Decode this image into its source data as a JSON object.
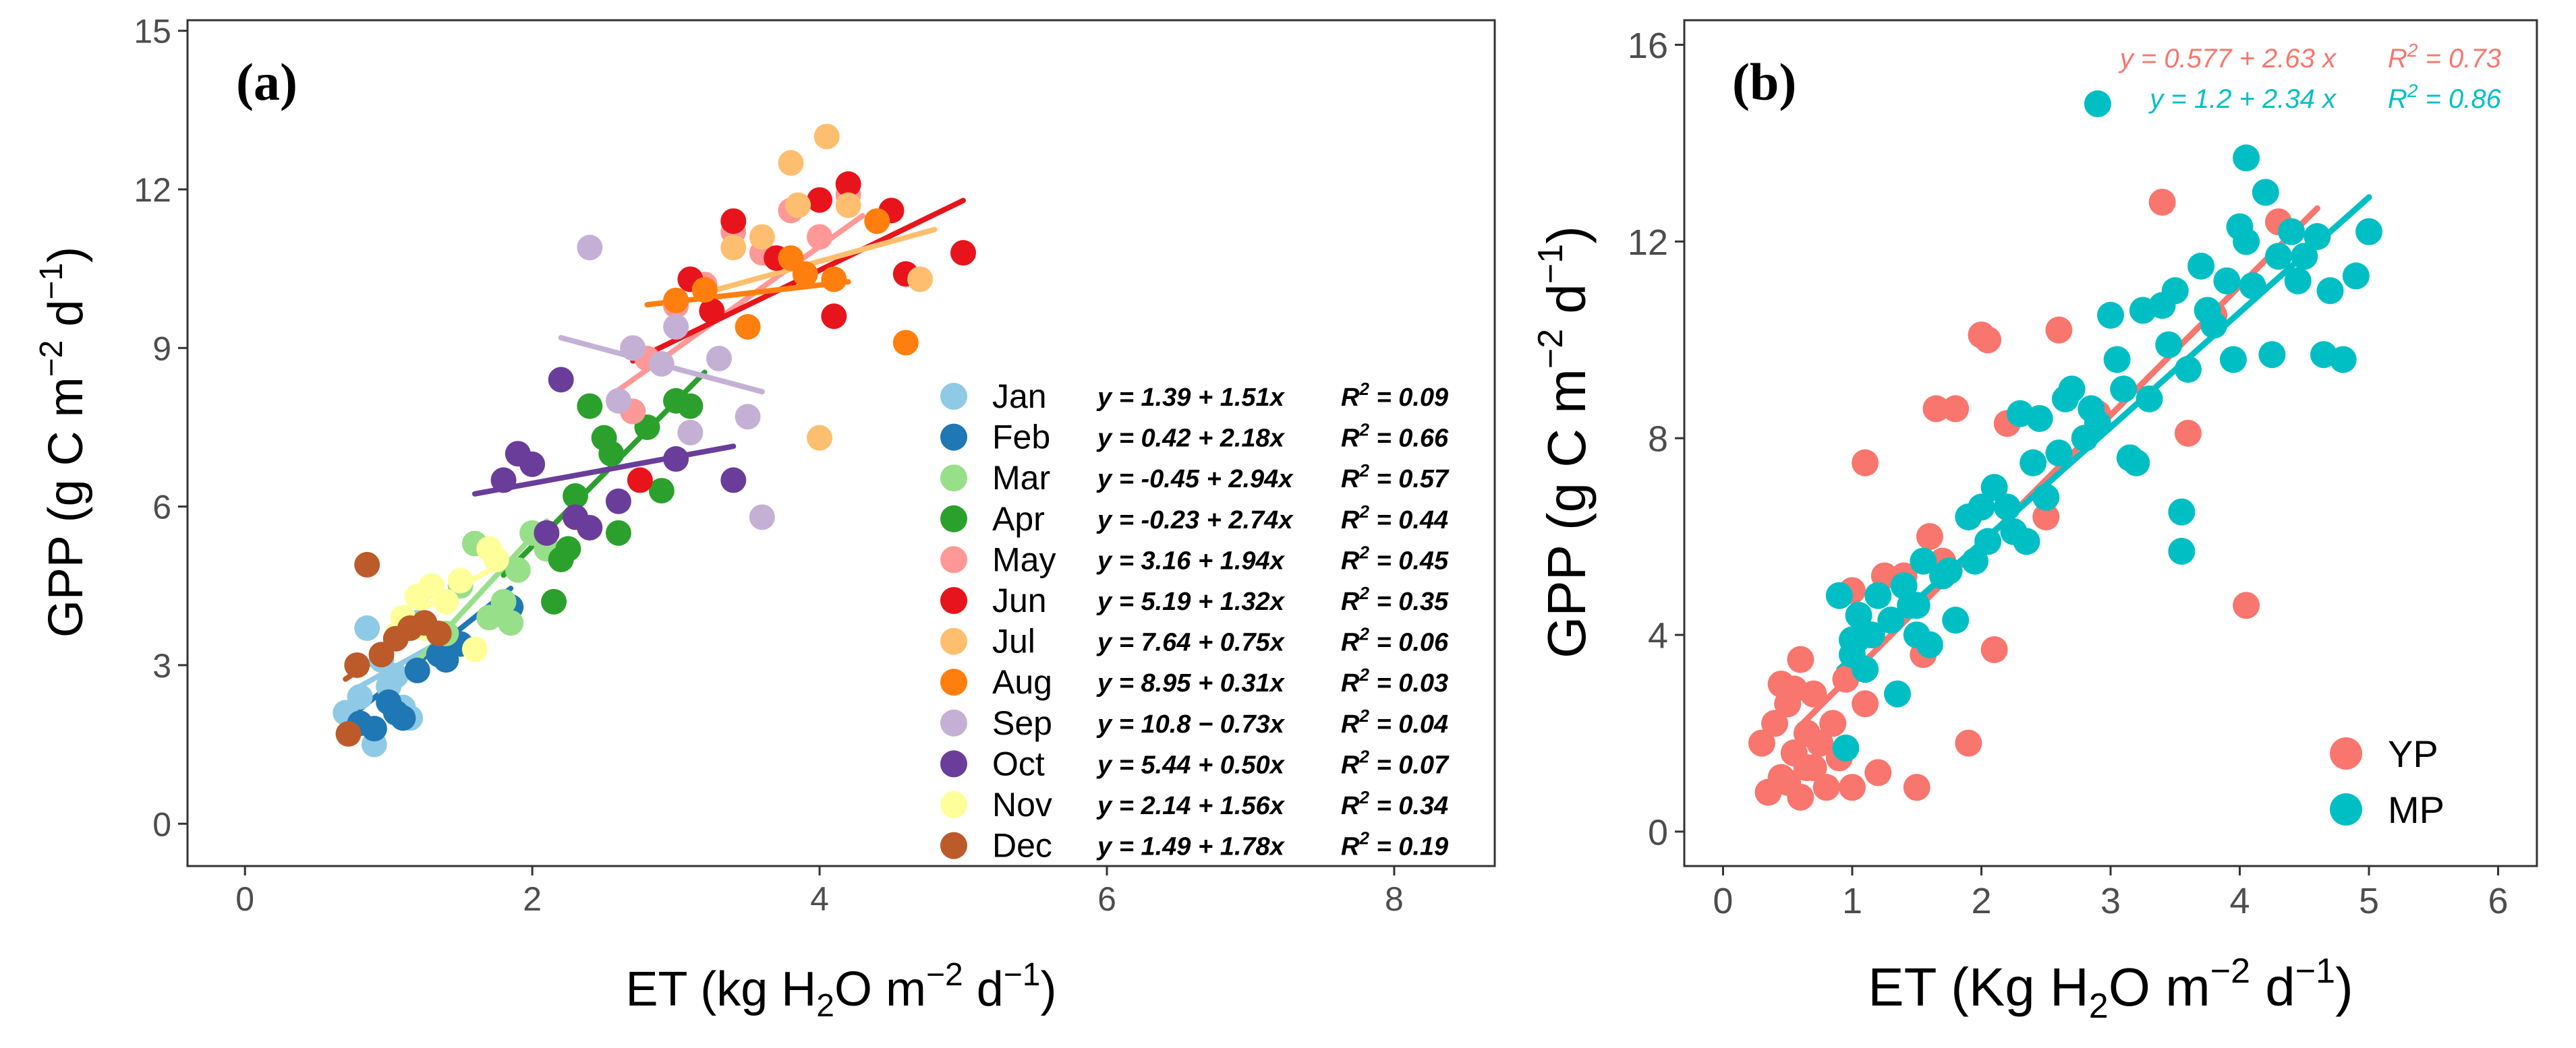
{
  "chart_data": [
    {
      "type": "scatter",
      "panel_label": "(a)",
      "xlim": [
        -0.4,
        8.7
      ],
      "ylim": [
        -0.8,
        15.2
      ],
      "xticks": [
        0,
        2,
        4,
        6,
        8
      ],
      "yticks": [
        0,
        3,
        6,
        9,
        12,
        15
      ],
      "xlabel": {
        "pre": "ET (kg H",
        "sub": "2",
        "mid": "O m",
        "sup1": "−2",
        "mid2": " d",
        "sup2": "−1",
        "post": ")"
      },
      "ylabel": {
        "pre": "GPP (g C m",
        "sup1": "−2",
        "mid": " d",
        "sup2": "−1",
        "post": ")"
      },
      "grid": false,
      "legend_position": "bottom-right",
      "series": [
        {
          "name": "Jan",
          "color": "#8ecae6",
          "equation": "y = 1.39 + 1.51x",
          "r2": "0.09",
          "intercept": 1.39,
          "slope": 1.51,
          "fit_x": [
            0.75,
            1.35
          ],
          "x": [
            0.7,
            0.9,
            1.0,
            1.1,
            1.2,
            0.8,
            0.95,
            1.05,
            1.15,
            0.85
          ],
          "y": [
            2.1,
            1.5,
            2.6,
            2.2,
            3.8,
            2.4,
            3.1,
            2.8,
            2.0,
            3.7
          ]
        },
        {
          "name": "Feb",
          "color": "#1f77b4",
          "equation": "y = 0.42 + 2.18x",
          "r2": "0.66",
          "intercept": 0.42,
          "slope": 2.18,
          "fit_x": [
            0.8,
            1.85
          ],
          "x": [
            0.9,
            1.0,
            1.05,
            1.1,
            1.2,
            1.35,
            1.5,
            1.85,
            0.8,
            1.4
          ],
          "y": [
            1.8,
            2.3,
            2.1,
            2.0,
            2.9,
            3.2,
            3.4,
            4.1,
            1.9,
            3.1
          ]
        },
        {
          "name": "Mar",
          "color": "#98df8a",
          "equation": "y = -0.45 + 2.94x",
          "r2": "0.57",
          "intercept": -0.45,
          "slope": 2.94,
          "fit_x": [
            1.2,
            2.1
          ],
          "x": [
            1.4,
            1.5,
            1.6,
            1.7,
            1.8,
            1.9,
            2.0,
            2.1,
            1.85
          ],
          "y": [
            3.6,
            4.5,
            5.3,
            3.9,
            4.2,
            4.8,
            5.5,
            5.2,
            3.8
          ]
        },
        {
          "name": "Apr",
          "color": "#2ca02c",
          "equation": "y = -0.23 + 2.74x",
          "r2": "0.44",
          "intercept": -0.23,
          "slope": 2.74,
          "fit_x": [
            1.8,
            3.2
          ],
          "x": [
            2.2,
            2.3,
            2.4,
            2.5,
            2.6,
            2.7,
            2.8,
            2.9,
            3.0,
            3.1,
            2.15,
            2.55,
            2.25
          ],
          "y": [
            5.0,
            6.2,
            7.9,
            7.3,
            5.5,
            7.8,
            7.5,
            6.3,
            8.0,
            7.9,
            4.2,
            7.0,
            5.2
          ]
        },
        {
          "name": "May",
          "color": "#ff9896",
          "equation": "y = 3.16 + 1.94x",
          "r2": "0.45",
          "intercept": 3.16,
          "slope": 1.94,
          "fit_x": [
            2.6,
            4.3
          ],
          "x": [
            2.8,
            3.0,
            3.2,
            3.4,
            3.6,
            3.8,
            4.0,
            4.2,
            2.7
          ],
          "y": [
            8.8,
            9.8,
            10.2,
            11.2,
            10.8,
            11.6,
            11.1,
            11.9,
            7.8
          ]
        },
        {
          "name": "Jun",
          "color": "#e8141c",
          "equation": "y = 5.19 + 1.32x",
          "r2": "0.35",
          "intercept": 5.19,
          "slope": 1.32,
          "fit_x": [
            2.7,
            5.0
          ],
          "x": [
            3.1,
            3.4,
            3.7,
            4.0,
            4.1,
            4.2,
            4.5,
            4.6,
            5.0,
            2.75,
            3.25
          ],
          "y": [
            10.3,
            11.4,
            10.7,
            11.8,
            9.6,
            12.1,
            11.6,
            10.4,
            10.8,
            6.5,
            9.7
          ]
        },
        {
          "name": "Jul",
          "color": "#fdbf6f",
          "equation": "y = 7.64 + 0.75x",
          "r2": "0.06",
          "intercept": 7.64,
          "slope": 0.75,
          "fit_x": [
            3.2,
            4.8
          ],
          "x": [
            3.4,
            3.6,
            3.8,
            4.05,
            4.2,
            4.4,
            4.7,
            4.0,
            3.85
          ],
          "y": [
            10.9,
            11.1,
            12.5,
            13.0,
            11.7,
            11.4,
            10.3,
            7.3,
            11.7
          ]
        },
        {
          "name": "Aug",
          "color": "#ff7f0e",
          "equation": "y = 8.95 + 0.31x",
          "r2": "0.03",
          "intercept": 8.95,
          "slope": 0.31,
          "fit_x": [
            2.8,
            4.2
          ],
          "x": [
            3.2,
            3.5,
            3.8,
            4.1,
            4.4,
            4.6,
            3.9,
            3.0
          ],
          "y": [
            10.1,
            9.4,
            10.7,
            10.3,
            11.4,
            9.1,
            10.4,
            9.9
          ]
        },
        {
          "name": "Sep",
          "color": "#c5b0d5",
          "equation": "y = 10.8 − 0.73x",
          "r2": "0.04",
          "intercept": 10.8,
          "slope": -0.73,
          "fit_x": [
            2.2,
            3.6
          ],
          "x": [
            2.4,
            2.7,
            2.9,
            3.1,
            3.3,
            3.5,
            3.6,
            3.0,
            2.6
          ],
          "y": [
            10.9,
            9.0,
            8.7,
            7.4,
            8.8,
            7.7,
            5.8,
            9.4,
            8.0
          ]
        },
        {
          "name": "Oct",
          "color": "#6a3d9a",
          "equation": "y = 5.44 + 0.50x",
          "r2": "0.07",
          "intercept": 5.44,
          "slope": 0.5,
          "fit_x": [
            1.6,
            3.4
          ],
          "x": [
            1.8,
            2.0,
            2.1,
            2.2,
            2.4,
            2.6,
            3.0,
            3.4,
            1.9,
            2.3
          ],
          "y": [
            6.5,
            6.8,
            5.5,
            8.4,
            5.6,
            6.1,
            6.9,
            6.5,
            7.0,
            5.8
          ]
        },
        {
          "name": "Nov",
          "color": "#ffff99",
          "equation": "y = 2.14 + 1.56x",
          "r2": "0.34",
          "intercept": 2.14,
          "slope": 1.56,
          "fit_x": [
            1.0,
            1.8
          ],
          "x": [
            1.1,
            1.2,
            1.3,
            1.4,
            1.5,
            1.6,
            1.7,
            1.75,
            1.25
          ],
          "y": [
            3.9,
            4.3,
            4.5,
            4.2,
            4.6,
            3.3,
            5.2,
            5.0,
            3.7
          ]
        },
        {
          "name": "Dec",
          "color": "#bc5a2a",
          "equation": "y = 1.49 + 1.78x",
          "r2": "0.19",
          "intercept": 1.49,
          "slope": 1.78,
          "fit_x": [
            0.7,
            1.3
          ],
          "x": [
            0.72,
            0.78,
            0.85,
            0.95,
            1.05,
            1.15,
            1.25,
            1.35
          ],
          "y": [
            1.7,
            3.0,
            4.9,
            3.2,
            3.5,
            3.7,
            3.8,
            3.6
          ]
        }
      ]
    },
    {
      "type": "scatter",
      "panel_label": "(b)",
      "xlim": [
        -0.3,
        6.3
      ],
      "ylim": [
        -0.7,
        16.5
      ],
      "xticks": [
        0,
        1,
        2,
        3,
        4,
        5,
        6
      ],
      "yticks": [
        0,
        4,
        8,
        12,
        16
      ],
      "xlabel": {
        "pre": "ET (Kg H",
        "sub": "2",
        "mid": "O m",
        "sup1": "−2",
        "mid2": " d",
        "sup2": "−1",
        "post": ")"
      },
      "ylabel": {
        "pre": "GPP (g C m",
        "sup1": "−2",
        "mid": " d",
        "sup2": "−1",
        "post": ")"
      },
      "grid": false,
      "legend_position": "bottom-right",
      "series": [
        {
          "name": "YP",
          "color": "#f8766d",
          "equation": "y = 0.577 + 2.63 x",
          "r2": "0.73",
          "intercept": 0.577,
          "slope": 2.63,
          "fit_x": [
            0.6,
            4.6
          ],
          "x": [
            0.3,
            0.35,
            0.4,
            0.45,
            0.5,
            0.5,
            0.55,
            0.6,
            0.6,
            0.65,
            0.7,
            0.7,
            0.75,
            0.8,
            0.85,
            0.9,
            0.95,
            1.0,
            1.0,
            1.1,
            1.2,
            1.3,
            1.4,
            1.5,
            1.55,
            1.6,
            1.7,
            1.8,
            1.9,
            2.0,
            2.1,
            2.2,
            2.5,
            2.6,
            2.9,
            3.4,
            3.6,
            3.8,
            4.05,
            4.3,
            0.45,
            0.55,
            0.65,
            1.1,
            1.65,
            2.05,
            1.25
          ],
          "y": [
            1.8,
            0.8,
            2.2,
            3.0,
            1.0,
            2.6,
            1.6,
            3.5,
            0.7,
            2.0,
            1.3,
            2.8,
            1.8,
            0.9,
            2.2,
            1.5,
            3.1,
            0.9,
            4.9,
            2.6,
            1.2,
            4.3,
            5.2,
            0.9,
            3.6,
            6.0,
            5.5,
            8.6,
            1.8,
            10.1,
            3.7,
            8.3,
            6.4,
            10.2,
            8.5,
            12.8,
            8.1,
            10.5,
            4.6,
            12.4,
            1.1,
            2.9,
            1.3,
            7.5,
            8.6,
            10.0,
            5.2
          ]
        },
        {
          "name": "MP",
          "color": "#00bfc4",
          "equation": "y = 1.2 + 2.34 x",
          "r2": "0.86",
          "intercept": 1.2,
          "slope": 2.34,
          "fit_x": [
            0.9,
            5.0
          ],
          "x": [
            0.9,
            0.95,
            1.0,
            1.05,
            1.1,
            1.15,
            1.2,
            1.3,
            1.35,
            1.4,
            1.45,
            1.5,
            1.55,
            1.6,
            1.7,
            1.75,
            1.8,
            1.9,
            1.95,
            2.0,
            2.05,
            2.1,
            2.2,
            2.25,
            2.3,
            2.4,
            2.45,
            2.5,
            2.6,
            2.65,
            2.7,
            2.8,
            2.85,
            2.9,
            3.0,
            3.05,
            3.1,
            3.2,
            3.25,
            3.3,
            3.4,
            3.45,
            3.5,
            3.55,
            3.6,
            3.7,
            3.75,
            3.8,
            3.9,
            3.95,
            4.0,
            4.05,
            4.1,
            4.2,
            4.25,
            4.3,
            4.4,
            4.45,
            4.5,
            4.6,
            4.65,
            4.7,
            4.8,
            4.9,
            5.0,
            3.55,
            2.9,
            4.05,
            1.0,
            1.5,
            2.35,
            3.15
          ],
          "y": [
            4.8,
            1.7,
            3.9,
            4.4,
            3.3,
            4.0,
            4.8,
            4.3,
            2.8,
            5.0,
            4.6,
            4.6,
            5.5,
            3.8,
            5.2,
            5.3,
            4.3,
            6.4,
            5.5,
            6.6,
            5.9,
            7.0,
            6.6,
            6.1,
            8.5,
            7.5,
            8.4,
            6.8,
            7.7,
            8.8,
            9.0,
            8.0,
            8.6,
            8.3,
            10.5,
            9.6,
            9.0,
            7.5,
            10.6,
            8.8,
            10.7,
            9.9,
            11.0,
            6.5,
            9.4,
            11.5,
            10.6,
            10.3,
            11.2,
            9.6,
            12.3,
            12.0,
            11.1,
            13.0,
            9.7,
            11.7,
            12.2,
            11.2,
            11.7,
            12.1,
            9.7,
            11.0,
            9.6,
            11.3,
            12.2,
            5.7,
            14.8,
            13.7,
            3.6,
            4.0,
            5.9,
            7.6
          ]
        }
      ]
    }
  ]
}
